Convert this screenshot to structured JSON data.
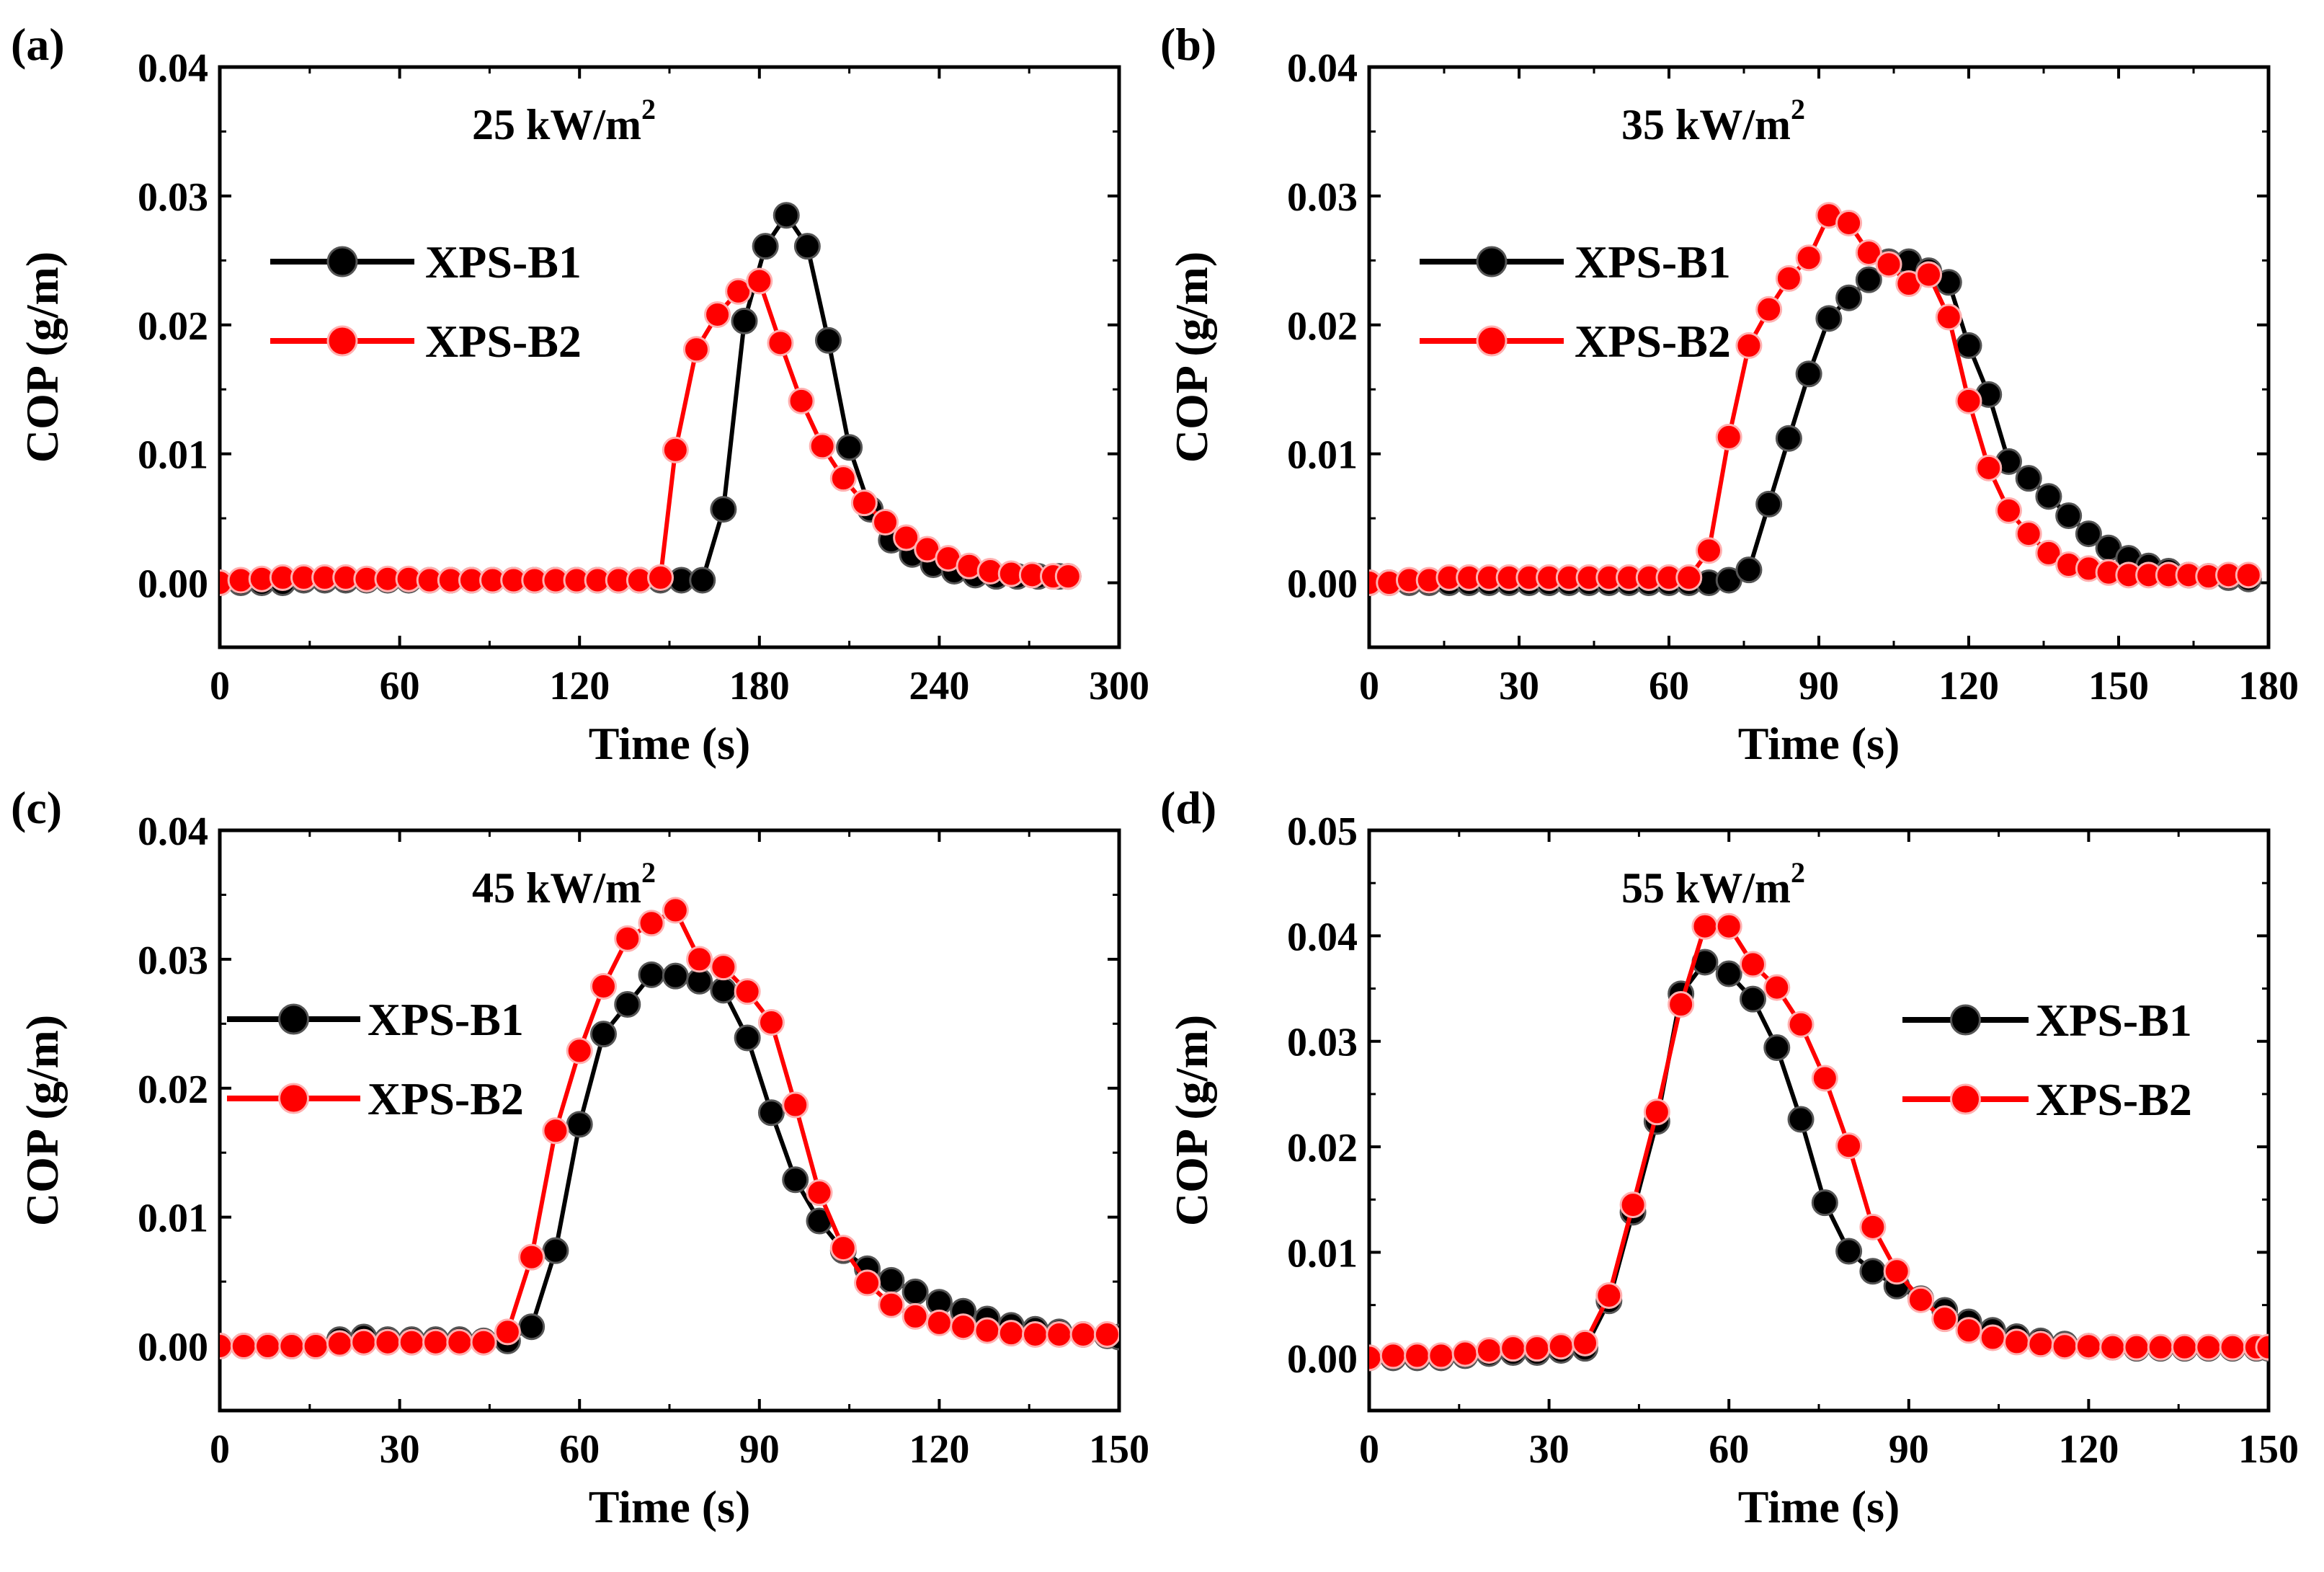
{
  "colors": {
    "series1": "#000000",
    "series2": "#ff0000",
    "axis": "#000000",
    "background": "#ffffff"
  },
  "chart_data": [
    {
      "type": "line",
      "panel_label": "(a)",
      "annotation": "25 kW/m",
      "annotation_sup": "2",
      "xlabel": "Time (s)",
      "ylabel": "COP (g/m)",
      "xlim": [
        0,
        300
      ],
      "ylim": [
        -0.005,
        0.04
      ],
      "xticks": [
        0,
        60,
        120,
        180,
        240,
        300
      ],
      "yticks": [
        0.0,
        0.01,
        0.02,
        0.03,
        0.04
      ],
      "xtick_labels": [
        "0",
        "60",
        "120",
        "180",
        "240",
        "300"
      ],
      "ytick_labels": [
        "0.00",
        "0.01",
        "0.02",
        "0.03",
        "0.04"
      ],
      "legend": {
        "position": "upper-left"
      },
      "series": [
        {
          "name": "XPS-B1",
          "color": "#000000",
          "x": [
            0,
            7,
            14,
            21,
            28,
            35,
            42,
            49,
            56,
            63,
            70,
            77,
            84,
            91,
            98,
            105,
            112,
            119,
            126,
            133,
            140,
            147,
            154,
            161,
            168,
            175,
            182,
            189,
            196,
            203,
            210,
            217,
            224,
            231,
            238,
            245,
            252,
            259,
            266,
            273,
            280,
            283
          ],
          "y": [
            0.0,
            0.0,
            0.0,
            0.0,
            0.0002,
            0.0002,
            0.0002,
            0.0002,
            0.0002,
            0.0002,
            0.0002,
            0.0002,
            0.0002,
            0.0002,
            0.0002,
            0.0002,
            0.0002,
            0.0002,
            0.0002,
            0.0002,
            0.0002,
            0.0002,
            0.0002,
            0.0002,
            0.0057,
            0.0203,
            0.0261,
            0.0285,
            0.0261,
            0.0188,
            0.0105,
            0.0057,
            0.0033,
            0.0022,
            0.0014,
            0.0009,
            0.0006,
            0.0005,
            0.0005,
            0.0005,
            0.0005,
            0.0005
          ]
        },
        {
          "name": "XPS-B2",
          "color": "#ff0000",
          "x": [
            0,
            7,
            14,
            21,
            28,
            35,
            42,
            49,
            56,
            63,
            70,
            77,
            84,
            91,
            98,
            105,
            112,
            119,
            126,
            133,
            140,
            147,
            152,
            159,
            166,
            173,
            180,
            187,
            194,
            201,
            208,
            215,
            222,
            229,
            236,
            243,
            250,
            257,
            264,
            271,
            278,
            283
          ],
          "y": [
            0.0,
            0.0002,
            0.0003,
            0.0004,
            0.0004,
            0.0004,
            0.0004,
            0.0003,
            0.0003,
            0.0003,
            0.0002,
            0.0002,
            0.0002,
            0.0002,
            0.0002,
            0.0002,
            0.0002,
            0.0002,
            0.0002,
            0.0002,
            0.0002,
            0.0004,
            0.0103,
            0.0181,
            0.0208,
            0.0226,
            0.0234,
            0.0186,
            0.0141,
            0.0106,
            0.0081,
            0.0062,
            0.0047,
            0.0035,
            0.0026,
            0.0019,
            0.0013,
            0.0009,
            0.0007,
            0.0006,
            0.0005,
            0.0005
          ]
        }
      ]
    },
    {
      "type": "line",
      "panel_label": "(b)",
      "annotation": "35 kW/m",
      "annotation_sup": "2",
      "xlabel": "Time (s)",
      "ylabel": "COP (g/m)",
      "xlim": [
        0,
        180
      ],
      "ylim": [
        -0.005,
        0.04
      ],
      "xticks": [
        0,
        30,
        60,
        90,
        120,
        150,
        180
      ],
      "yticks": [
        0.0,
        0.01,
        0.02,
        0.03,
        0.04
      ],
      "xtick_labels": [
        "0",
        "30",
        "60",
        "90",
        "120",
        "150",
        "180"
      ],
      "ytick_labels": [
        "0.00",
        "0.01",
        "0.02",
        "0.03",
        "0.04"
      ],
      "legend": {
        "position": "upper-left"
      },
      "series": [
        {
          "name": "XPS-B1",
          "color": "#000000",
          "x": [
            0,
            4,
            8,
            12,
            16,
            20,
            24,
            28,
            32,
            36,
            40,
            44,
            48,
            52,
            56,
            60,
            64,
            68,
            72,
            76,
            80,
            84,
            88,
            92,
            96,
            100,
            104,
            108,
            112,
            116,
            120,
            124,
            128,
            132,
            136,
            140,
            144,
            148,
            152,
            156,
            160,
            164,
            168,
            172,
            176
          ],
          "y": [
            0.0,
            0.0,
            0.0,
            0.0,
            0.0,
            0.0,
            0.0,
            0.0,
            0.0,
            0.0,
            0.0,
            0.0,
            0.0,
            0.0,
            0.0,
            0.0,
            0.0,
            0.0,
            0.0002,
            0.001,
            0.0061,
            0.0112,
            0.0162,
            0.0205,
            0.0221,
            0.0235,
            0.0249,
            0.0249,
            0.0242,
            0.0233,
            0.0184,
            0.0146,
            0.0094,
            0.0081,
            0.0067,
            0.0052,
            0.0038,
            0.0027,
            0.0019,
            0.0013,
            0.0009,
            0.0006,
            0.0005,
            0.0004,
            0.0003
          ]
        },
        {
          "name": "XPS-B2",
          "color": "#ff0000",
          "x": [
            0,
            4,
            8,
            12,
            16,
            20,
            24,
            28,
            32,
            36,
            40,
            44,
            48,
            52,
            56,
            60,
            64,
            68,
            72,
            76,
            80,
            84,
            88,
            92,
            96,
            100,
            104,
            108,
            112,
            116,
            120,
            124,
            128,
            132,
            136,
            140,
            144,
            148,
            152,
            156,
            160,
            164,
            168,
            172,
            176
          ],
          "y": [
            0.0,
            0.0,
            0.0002,
            0.0002,
            0.0004,
            0.0004,
            0.0004,
            0.0004,
            0.0004,
            0.0004,
            0.0004,
            0.0004,
            0.0004,
            0.0004,
            0.0004,
            0.0004,
            0.0004,
            0.0025,
            0.0113,
            0.0184,
            0.0212,
            0.0236,
            0.0252,
            0.0285,
            0.0279,
            0.0256,
            0.0247,
            0.0232,
            0.0239,
            0.0206,
            0.0141,
            0.0089,
            0.0056,
            0.0038,
            0.0023,
            0.0014,
            0.0011,
            0.0008,
            0.0006,
            0.0006,
            0.0006,
            0.0006,
            0.0005,
            0.0006,
            0.0006
          ]
        }
      ]
    },
    {
      "type": "line",
      "panel_label": "(c)",
      "annotation": "45 kW/m",
      "annotation_sup": "2",
      "xlabel": "Time (s)",
      "ylabel": "COP (g/m)",
      "xlim": [
        0,
        150
      ],
      "ylim": [
        -0.005,
        0.04
      ],
      "xticks": [
        0,
        30,
        60,
        90,
        120,
        150
      ],
      "yticks": [
        0.0,
        0.01,
        0.02,
        0.03,
        0.04
      ],
      "xtick_labels": [
        "0",
        "30",
        "60",
        "90",
        "120",
        "150"
      ],
      "ytick_labels": [
        "0.00",
        "0.01",
        "0.02",
        "0.03",
        "0.04"
      ],
      "legend": {
        "position": "left"
      },
      "series": [
        {
          "name": "XPS-B1",
          "color": "#000000",
          "x": [
            0,
            4,
            8,
            12,
            16,
            20,
            24,
            28,
            32,
            36,
            40,
            44,
            48,
            52,
            56,
            60,
            64,
            68,
            72,
            76,
            80,
            84,
            88,
            92,
            96,
            100,
            104,
            108,
            112,
            116,
            120,
            124,
            128,
            132,
            136,
            140,
            144,
            148,
            150
          ],
          "y": [
            0.0,
            0.0,
            0.0,
            0.0,
            0.0,
            0.0005,
            0.0007,
            0.0005,
            0.0005,
            0.0005,
            0.0005,
            0.0004,
            0.0004,
            0.0015,
            0.0074,
            0.0172,
            0.0242,
            0.0265,
            0.0288,
            0.0287,
            0.0283,
            0.0276,
            0.0239,
            0.0181,
            0.0129,
            0.0097,
            0.0074,
            0.006,
            0.0051,
            0.0042,
            0.0034,
            0.0027,
            0.0021,
            0.0016,
            0.0013,
            0.0011,
            0.0009,
            0.0008,
            0.0007
          ]
        },
        {
          "name": "XPS-B2",
          "color": "#ff0000",
          "x": [
            0,
            4,
            8,
            12,
            16,
            20,
            24,
            28,
            32,
            36,
            40,
            44,
            48,
            52,
            56,
            60,
            64,
            68,
            72,
            76,
            80,
            84,
            88,
            92,
            96,
            100,
            104,
            108,
            112,
            116,
            120,
            124,
            128,
            132,
            136,
            140,
            144,
            148
          ],
          "y": [
            0.0,
            0.0,
            0.0,
            0.0,
            0.0,
            0.0002,
            0.0003,
            0.0003,
            0.0003,
            0.0003,
            0.0003,
            0.0003,
            0.0011,
            0.0069,
            0.0167,
            0.0229,
            0.0279,
            0.0316,
            0.0328,
            0.0338,
            0.03,
            0.0294,
            0.0275,
            0.0251,
            0.0187,
            0.0119,
            0.0076,
            0.0049,
            0.0032,
            0.0023,
            0.0018,
            0.0015,
            0.0012,
            0.001,
            0.0009,
            0.0009,
            0.0009,
            0.0009
          ]
        }
      ]
    },
    {
      "type": "line",
      "panel_label": "(d)",
      "annotation": "55 kW/m",
      "annotation_sup": "2",
      "xlabel": "Time (s)",
      "ylabel": "COP (g/m)",
      "xlim": [
        0,
        150
      ],
      "ylim": [
        -0.005,
        0.05
      ],
      "xticks": [
        0,
        30,
        60,
        90,
        120,
        150
      ],
      "yticks": [
        0.0,
        0.01,
        0.02,
        0.03,
        0.04,
        0.05
      ],
      "xtick_labels": [
        "0",
        "30",
        "60",
        "90",
        "120",
        "150"
      ],
      "ytick_labels": [
        "0.00",
        "0.01",
        "0.02",
        "0.03",
        "0.04",
        "0.05"
      ],
      "legend": {
        "position": "right"
      },
      "series": [
        {
          "name": "XPS-B1",
          "color": "#000000",
          "x": [
            0,
            4,
            8,
            12,
            16,
            20,
            24,
            28,
            32,
            36,
            40,
            44,
            48,
            52,
            56,
            60,
            64,
            68,
            72,
            76,
            80,
            84,
            88,
            92,
            96,
            100,
            104,
            108,
            112,
            116,
            120,
            124,
            128,
            132,
            136,
            140,
            144,
            148,
            150
          ],
          "y": [
            0.0,
            0.0,
            0.0,
            0.0,
            0.0002,
            0.0004,
            0.0005,
            0.0005,
            0.0007,
            0.0009,
            0.0054,
            0.0138,
            0.0224,
            0.0345,
            0.0375,
            0.0364,
            0.034,
            0.0294,
            0.0226,
            0.0147,
            0.0101,
            0.0082,
            0.0068,
            0.0056,
            0.0045,
            0.0034,
            0.0026,
            0.002,
            0.0016,
            0.0013,
            0.0011,
            0.001,
            0.0009,
            0.0009,
            0.0009,
            0.0009,
            0.0009,
            0.0009,
            0.0009
          ]
        },
        {
          "name": "XPS-B2",
          "color": "#ff0000",
          "x": [
            0,
            4,
            8,
            12,
            16,
            20,
            24,
            28,
            32,
            36,
            40,
            44,
            48,
            52,
            56,
            60,
            64,
            68,
            72,
            76,
            80,
            84,
            88,
            92,
            96,
            100,
            104,
            108,
            112,
            116,
            120,
            124,
            128,
            132,
            136,
            140,
            144,
            148,
            150
          ],
          "y": [
            0.0,
            0.0002,
            0.0002,
            0.0002,
            0.0004,
            0.0007,
            0.0009,
            0.0009,
            0.0011,
            0.0014,
            0.0059,
            0.0145,
            0.0233,
            0.0335,
            0.0409,
            0.0409,
            0.0373,
            0.0351,
            0.0316,
            0.0265,
            0.0201,
            0.0124,
            0.0082,
            0.0055,
            0.0037,
            0.0026,
            0.0019,
            0.0015,
            0.0013,
            0.0011,
            0.0011,
            0.001,
            0.001,
            0.001,
            0.001,
            0.001,
            0.001,
            0.001,
            0.001
          ]
        }
      ]
    }
  ]
}
